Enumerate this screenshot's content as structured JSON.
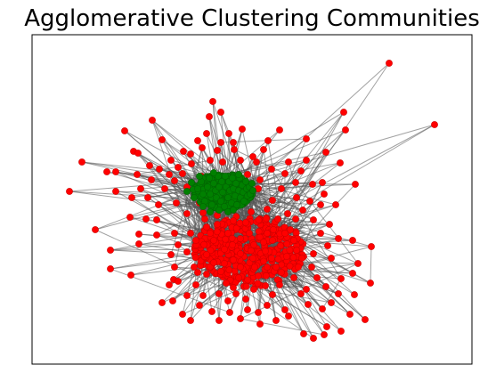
{
  "title": "Agglomerative Clustering Communities",
  "chart_data": {
    "type": "network",
    "title": "Agglomerative Clustering Communities",
    "xlabel": "",
    "ylabel": "",
    "axes_ticks": false,
    "communities": [
      {
        "color": "#ff0000",
        "region": "peripheral and lower-central dense core"
      },
      {
        "color": "#008000",
        "region": "upper-central dense core"
      }
    ],
    "edge_color": "#555555",
    "node_edge_color": "#cc0000",
    "red_nodes": [
      [
        437,
        71
      ],
      [
        488,
        140
      ],
      [
        386,
        126
      ],
      [
        239,
        114
      ],
      [
        235,
        131
      ],
      [
        248,
        126
      ],
      [
        171,
        135
      ],
      [
        140,
        147
      ],
      [
        182,
        157
      ],
      [
        222,
        158
      ],
      [
        257,
        150
      ],
      [
        272,
        145
      ],
      [
        301,
        158
      ],
      [
        314,
        146
      ],
      [
        388,
        146
      ],
      [
        382,
        183
      ],
      [
        366,
        171
      ],
      [
        344,
        156
      ],
      [
        92,
        182
      ],
      [
        120,
        193
      ],
      [
        130,
        193
      ],
      [
        150,
        170
      ],
      [
        155,
        172
      ],
      [
        168,
        186
      ],
      [
        78,
        215
      ],
      [
        130,
        215
      ],
      [
        158,
        212
      ],
      [
        185,
        212
      ],
      [
        196,
        203
      ],
      [
        205,
        195
      ],
      [
        214,
        173
      ],
      [
        227,
        166
      ],
      [
        244,
        169
      ],
      [
        263,
        168
      ],
      [
        288,
        182
      ],
      [
        305,
        190
      ],
      [
        320,
        195
      ],
      [
        332,
        205
      ],
      [
        351,
        207
      ],
      [
        362,
        205
      ],
      [
        399,
        207
      ],
      [
        360,
        230
      ],
      [
        377,
        230
      ],
      [
        352,
        247
      ],
      [
        370,
        252
      ],
      [
        380,
        268
      ],
      [
        396,
        270
      ],
      [
        417,
        277
      ],
      [
        402,
        296
      ],
      [
        396,
        307
      ],
      [
        416,
        318
      ],
      [
        383,
        313
      ],
      [
        398,
        331
      ],
      [
        380,
        330
      ],
      [
        362,
        347
      ],
      [
        367,
        367
      ],
      [
        383,
        372
      ],
      [
        393,
        353
      ],
      [
        410,
        359
      ],
      [
        341,
        375
      ],
      [
        352,
        380
      ],
      [
        364,
        376
      ],
      [
        107,
        258
      ],
      [
        124,
        281
      ],
      [
        124,
        302
      ],
      [
        147,
        309
      ],
      [
        156,
        274
      ],
      [
        156,
        263
      ],
      [
        164,
        246
      ],
      [
        146,
        244
      ],
      [
        176,
        247
      ],
      [
        196,
        262
      ],
      [
        200,
        275
      ],
      [
        210,
        283
      ],
      [
        196,
        300
      ],
      [
        195,
        314
      ],
      [
        182,
        340
      ],
      [
        205,
        353
      ],
      [
        224,
        343
      ],
      [
        238,
        350
      ],
      [
        258,
        351
      ],
      [
        270,
        358
      ],
      [
        290,
        351
      ],
      [
        300,
        343
      ],
      [
        320,
        348
      ],
      [
        324,
        355
      ],
      [
        306,
        331
      ],
      [
        285,
        325
      ],
      [
        262,
        323
      ],
      [
        246,
        330
      ],
      [
        220,
        320
      ],
      [
        240,
        295
      ],
      [
        270,
        300
      ],
      [
        305,
        290
      ],
      [
        335,
        300
      ],
      [
        344,
        325
      ],
      [
        366,
        322
      ],
      [
        372,
        290
      ],
      [
        352,
        285
      ],
      [
        330,
        270
      ],
      [
        300,
        262
      ],
      [
        276,
        250
      ],
      [
        262,
        248
      ],
      [
        232,
        255
      ],
      [
        220,
        270
      ],
      [
        340,
        236
      ],
      [
        333,
        222
      ],
      [
        306,
        225
      ],
      [
        290,
        212
      ],
      [
        170,
        202
      ],
      [
        179,
        190
      ],
      [
        192,
        180
      ],
      [
        215,
        184
      ],
      [
        226,
        198
      ],
      [
        278,
        196
      ],
      [
        292,
        202
      ],
      [
        316,
        212
      ],
      [
        228,
        239
      ],
      [
        244,
        242
      ],
      [
        312,
        246
      ],
      [
        323,
        240
      ],
      [
        261,
        275
      ],
      [
        252,
        280
      ],
      [
        270,
        285
      ],
      [
        285,
        275
      ],
      [
        298,
        282
      ],
      [
        315,
        276
      ],
      [
        322,
        288
      ],
      [
        310,
        300
      ],
      [
        290,
        310
      ],
      [
        268,
        312
      ],
      [
        248,
        305
      ],
      [
        232,
        286
      ],
      [
        240,
        270
      ],
      [
        256,
        262
      ],
      [
        280,
        262
      ],
      [
        296,
        272
      ],
      [
        326,
        258
      ],
      [
        339,
        290
      ],
      [
        350,
        300
      ],
      [
        232,
        308
      ],
      [
        218,
        300
      ],
      [
        210,
        332
      ],
      [
        228,
        332
      ],
      [
        256,
        338
      ],
      [
        276,
        336
      ],
      [
        298,
        321
      ],
      [
        330,
        312
      ],
      [
        314,
        320
      ],
      [
        284,
        290
      ],
      [
        262,
        292
      ],
      [
        236,
        262
      ],
      [
        244,
        228
      ],
      [
        300,
        235
      ],
      [
        282,
        238
      ],
      [
        262,
        236
      ],
      [
        224,
        228
      ],
      [
        210,
        240
      ],
      [
        198,
        228
      ],
      [
        178,
        230
      ],
      [
        166,
        222
      ],
      [
        148,
        222
      ],
      [
        154,
        196
      ],
      [
        236,
        180
      ],
      [
        250,
        182
      ],
      [
        270,
        180
      ],
      [
        284,
        176
      ],
      [
        296,
        168
      ],
      [
        248,
        160
      ],
      [
        232,
        150
      ],
      [
        262,
        160
      ],
      [
        344,
        180
      ],
      [
        338,
        192
      ],
      [
        210,
        210
      ],
      [
        324,
        182
      ],
      [
        206,
        170
      ],
      [
        200,
        188
      ],
      [
        190,
        196
      ],
      [
        360,
        262
      ],
      [
        368,
        276
      ],
      [
        356,
        312
      ],
      [
        372,
        340
      ],
      [
        346,
        342
      ],
      [
        338,
        330
      ],
      [
        310,
        360
      ],
      [
        292,
        364
      ],
      [
        278,
        348
      ],
      [
        246,
        360
      ],
      [
        214,
        360
      ],
      [
        194,
        338
      ],
      [
        190,
        320
      ],
      [
        192,
        286
      ],
      [
        214,
        262
      ],
      [
        230,
        246
      ],
      [
        244,
        252
      ],
      [
        270,
        268
      ],
      [
        306,
        270
      ],
      [
        320,
        262
      ],
      [
        332,
        246
      ],
      [
        348,
        226
      ],
      [
        364,
        218
      ],
      [
        176,
        264
      ],
      [
        200,
        316
      ],
      [
        222,
        306
      ],
      [
        265,
        330
      ],
      [
        300,
        300
      ],
      [
        316,
        306
      ],
      [
        286,
        300
      ],
      [
        254,
        318
      ]
    ],
    "green_nodes": [
      [
        210,
        215
      ],
      [
        215,
        205
      ],
      [
        218,
        222
      ],
      [
        222,
        212
      ],
      [
        226,
        204
      ],
      [
        228,
        218
      ],
      [
        230,
        226
      ],
      [
        233,
        210
      ],
      [
        235,
        200
      ],
      [
        236,
        218
      ],
      [
        238,
        230
      ],
      [
        240,
        206
      ],
      [
        242,
        214
      ],
      [
        243,
        222
      ],
      [
        245,
        198
      ],
      [
        246,
        210
      ],
      [
        248,
        226
      ],
      [
        249,
        204
      ],
      [
        250,
        216
      ],
      [
        252,
        232
      ],
      [
        253,
        198
      ],
      [
        254,
        210
      ],
      [
        256,
        222
      ],
      [
        257,
        204
      ],
      [
        258,
        214
      ],
      [
        260,
        228
      ],
      [
        261,
        200
      ],
      [
        262,
        212
      ],
      [
        264,
        220
      ],
      [
        265,
        206
      ],
      [
        266,
        230
      ],
      [
        268,
        214
      ],
      [
        269,
        200
      ],
      [
        270,
        222
      ],
      [
        272,
        208
      ],
      [
        273,
        216
      ],
      [
        274,
        226
      ],
      [
        276,
        204
      ],
      [
        277,
        212
      ],
      [
        278,
        220
      ],
      [
        280,
        210
      ],
      [
        281,
        218
      ],
      [
        283,
        206
      ],
      [
        246,
        236
      ],
      [
        256,
        238
      ],
      [
        236,
        238
      ],
      [
        262,
        236
      ],
      [
        228,
        232
      ],
      [
        224,
        198
      ],
      [
        240,
        194
      ],
      [
        268,
        196
      ],
      [
        284,
        214
      ]
    ]
  }
}
